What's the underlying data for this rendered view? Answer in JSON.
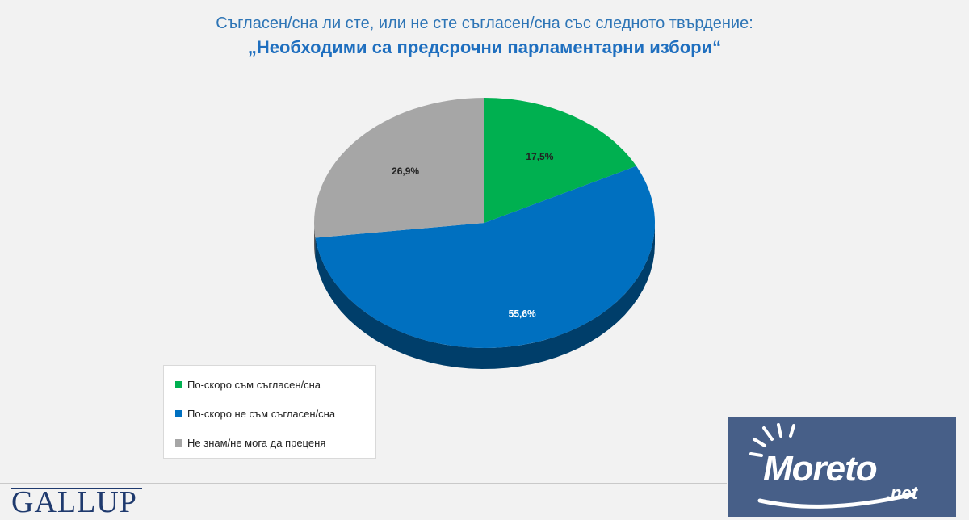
{
  "chart_data": {
    "type": "pie",
    "title": "Съгласен/сна ли сте, или не сте съгласен/сна със следното твърдение:",
    "subtitle": "„Необходими са предсрочни парламентарни избори“",
    "slices": [
      {
        "label": "По-скоро съм съгласен/сна",
        "value": 17.5,
        "value_label": "17,5%",
        "color": "#00b050"
      },
      {
        "label": "По-скоро не съм съгласен/сна",
        "value": 55.6,
        "value_label": "55,6%",
        "color": "#0070c0"
      },
      {
        "label": "Не знам/не мога да преценя",
        "value": 26.9,
        "value_label": "26,9%",
        "color": "#a6a6a6"
      }
    ],
    "legend_position": "bottom-left"
  },
  "branding": {
    "gallup": "GALLUP",
    "watermark_lettering": "Moreto.net"
  }
}
